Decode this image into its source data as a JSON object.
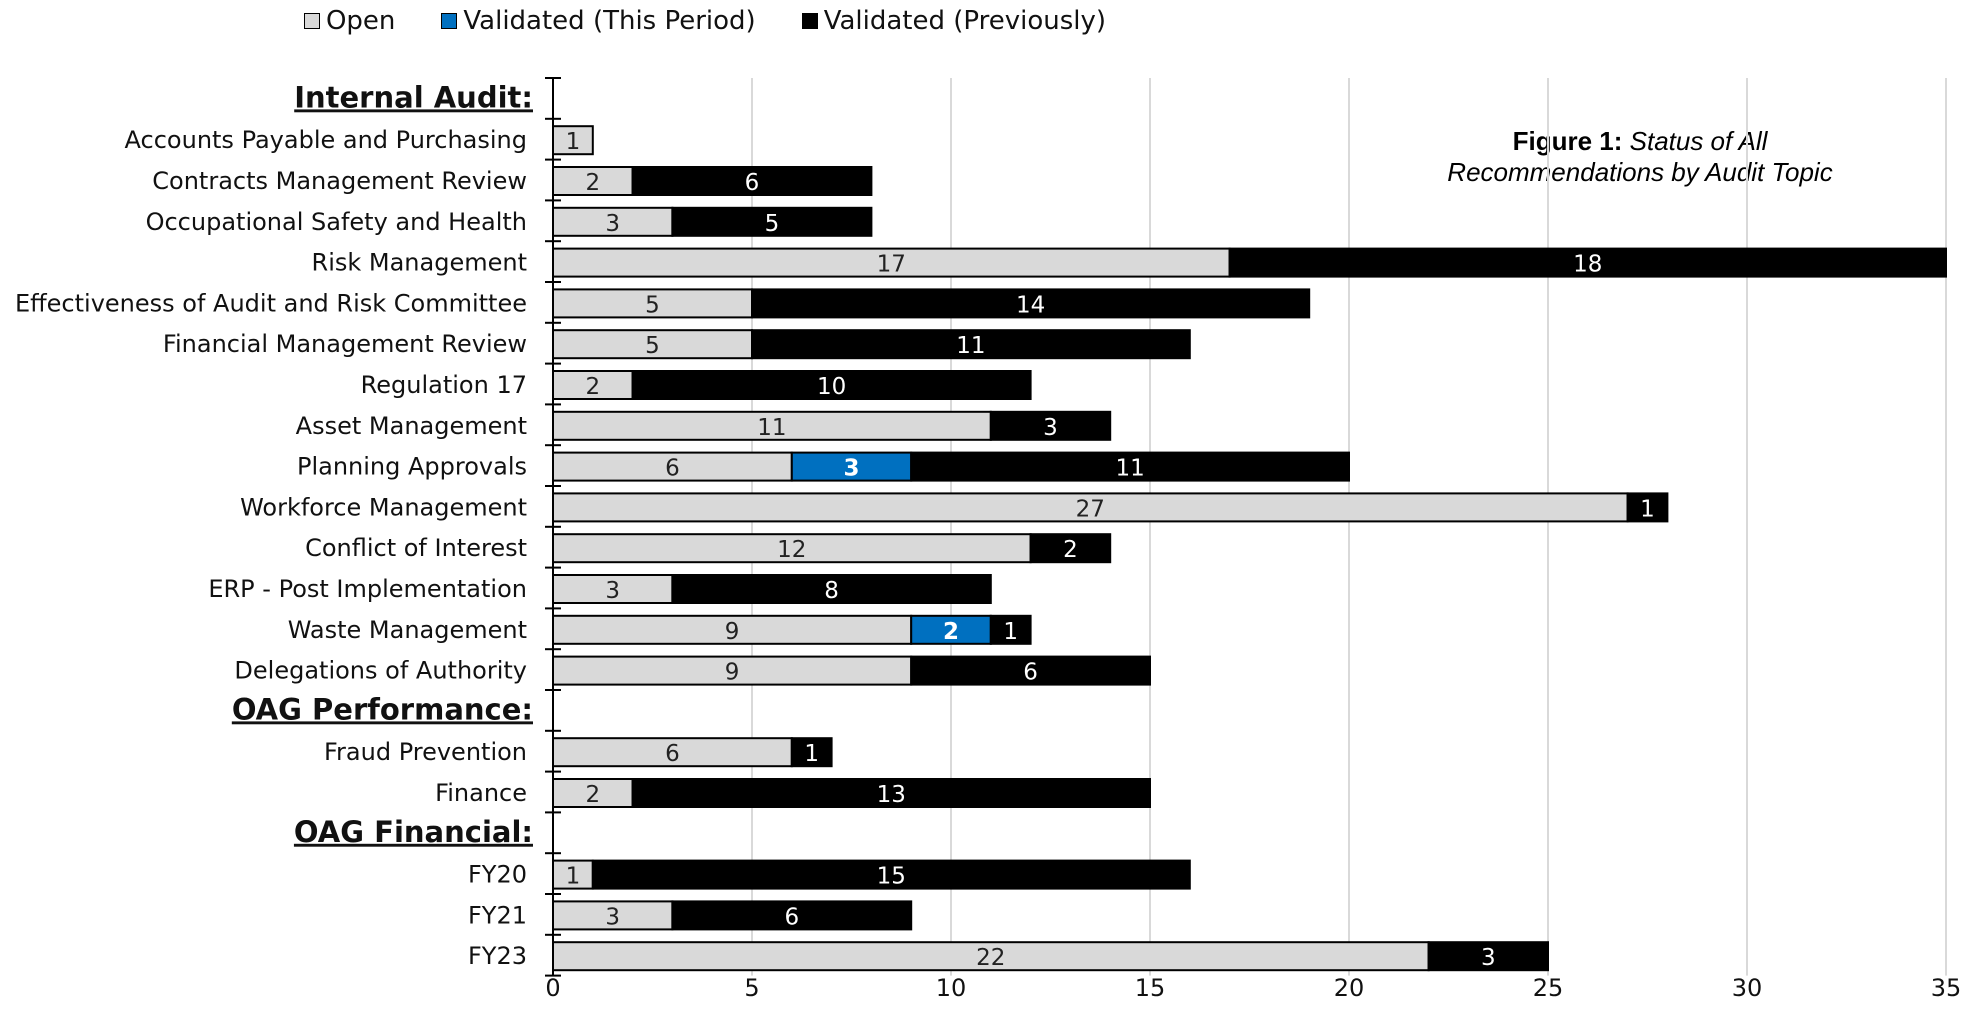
{
  "legend": [
    {
      "label": "Open",
      "color": "#d9d9d9"
    },
    {
      "label": "Validated (This Period)",
      "color": "#0070c0"
    },
    {
      "label": "Validated (Previously)",
      "color": "#000000"
    }
  ],
  "figure_title": {
    "bold": "Figure 1:",
    "italic": "Status of All Recommendations by Audit Topic"
  },
  "chart_data": {
    "type": "bar",
    "orientation": "horizontal",
    "stacked": true,
    "xlim": [
      0,
      35
    ],
    "x_ticks": [
      0,
      5,
      10,
      15,
      20,
      25,
      30,
      35
    ],
    "grid": true,
    "legend_position": "top",
    "rows": [
      {
        "label": "Internal Audit:",
        "heading": true
      },
      {
        "label": "Accounts Payable and Purchasing",
        "values": [
          1,
          0,
          0
        ]
      },
      {
        "label": "Contracts Management Review",
        "values": [
          2,
          0,
          6
        ]
      },
      {
        "label": "Occupational Safety and Health",
        "values": [
          3,
          0,
          5
        ]
      },
      {
        "label": "Risk Management",
        "values": [
          17,
          0,
          18
        ]
      },
      {
        "label": "Effectiveness of Audit and Risk Committee",
        "values": [
          5,
          0,
          14
        ]
      },
      {
        "label": "Financial Management Review",
        "values": [
          5,
          0,
          11
        ]
      },
      {
        "label": "Regulation 17",
        "values": [
          2,
          0,
          10
        ]
      },
      {
        "label": "Asset Management",
        "values": [
          11,
          0,
          3
        ]
      },
      {
        "label": "Planning Approvals",
        "values": [
          6,
          3,
          11
        ]
      },
      {
        "label": "Workforce Management",
        "values": [
          27,
          0,
          1
        ]
      },
      {
        "label": "Conflict of Interest",
        "values": [
          12,
          0,
          2
        ]
      },
      {
        "label": "ERP - Post Implementation",
        "values": [
          3,
          0,
          8
        ]
      },
      {
        "label": "Waste Management",
        "values": [
          9,
          2,
          1
        ]
      },
      {
        "label": "Delegations of Authority",
        "values": [
          9,
          0,
          6
        ]
      },
      {
        "label": "OAG Performance:",
        "heading": true
      },
      {
        "label": "Fraud Prevention",
        "values": [
          6,
          0,
          1
        ]
      },
      {
        "label": "Finance",
        "values": [
          2,
          0,
          13
        ]
      },
      {
        "label": "OAG Financial:",
        "heading": true
      },
      {
        "label": "FY20",
        "values": [
          1,
          0,
          15
        ]
      },
      {
        "label": "FY21",
        "values": [
          3,
          0,
          6
        ]
      },
      {
        "label": "FY23",
        "values": [
          22,
          0,
          3
        ]
      }
    ]
  }
}
